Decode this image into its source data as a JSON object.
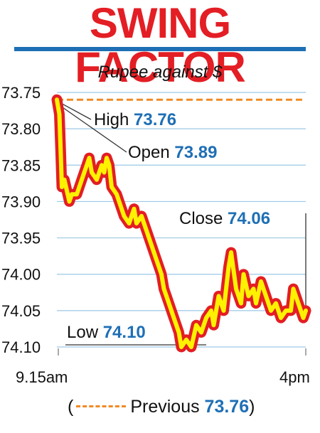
{
  "chart_data": {
    "type": "line",
    "title": "SWING FACTOR",
    "subtitle": "Rupee against $",
    "xlabel": "",
    "ylabel": "",
    "y_ticks": [
      "73.75",
      "73.80",
      "73.85",
      "73.90",
      "73.95",
      "74.00",
      "74.05",
      "74.10"
    ],
    "y_tick_values": [
      73.75,
      73.8,
      73.85,
      73.9,
      73.95,
      74.0,
      74.05,
      74.1
    ],
    "ylim": [
      74.1,
      73.75
    ],
    "y_inverted": true,
    "x_ticks": [
      "9.15am",
      "4pm"
    ],
    "xlim": [
      0,
      1
    ],
    "grid": true,
    "series": [
      {
        "values_x": [
          0.0,
          0.01,
          0.015,
          0.02,
          0.03,
          0.05,
          0.06,
          0.08,
          0.1,
          0.12,
          0.13,
          0.14,
          0.16,
          0.18,
          0.19,
          0.2,
          0.21,
          0.22,
          0.24,
          0.26,
          0.27,
          0.29,
          0.3,
          0.31,
          0.32,
          0.34,
          0.36,
          0.37,
          0.38,
          0.4,
          0.42,
          0.43,
          0.45,
          0.47,
          0.49,
          0.5,
          0.52,
          0.54,
          0.56,
          0.58,
          0.6,
          0.62,
          0.63,
          0.65,
          0.67,
          0.69,
          0.7,
          0.72,
          0.74,
          0.75,
          0.77,
          0.79,
          0.8,
          0.82,
          0.84,
          0.86,
          0.88,
          0.9,
          0.92,
          0.94,
          0.95,
          0.97,
          0.99,
          1.0
        ],
        "values_y": [
          73.76,
          73.78,
          73.83,
          73.88,
          73.87,
          73.9,
          73.89,
          73.89,
          73.87,
          73.85,
          73.84,
          73.86,
          73.87,
          73.85,
          73.86,
          73.84,
          73.85,
          73.88,
          73.89,
          73.91,
          73.92,
          73.93,
          73.92,
          73.91,
          73.93,
          73.92,
          73.94,
          73.95,
          73.96,
          73.98,
          74.0,
          74.02,
          74.04,
          74.06,
          74.08,
          74.1,
          74.09,
          74.1,
          74.07,
          74.08,
          74.06,
          74.05,
          74.07,
          74.03,
          74.05,
          73.99,
          73.97,
          74.02,
          74.04,
          74.0,
          74.03,
          74.02,
          74.04,
          74.01,
          74.03,
          74.05,
          74.04,
          74.06,
          74.05,
          74.05,
          74.02,
          74.04,
          74.06,
          74.05
        ]
      }
    ],
    "annotations": {
      "high": {
        "label": "High",
        "value": "73.76"
      },
      "open": {
        "label": "Open",
        "value": "73.89"
      },
      "close": {
        "label": "Close",
        "value": "74.06"
      },
      "low": {
        "label": "Low",
        "value": "74.10"
      }
    },
    "previous": {
      "label": "Previous",
      "value": "73.76",
      "y": 73.76
    },
    "colors": {
      "title": "#e31e24",
      "accent_blue": "#1e6fb5",
      "line_outer": "#e31e24",
      "line_inner": "#fff200",
      "previous_dash": "#f08a24",
      "grid": "#9cc8e6"
    }
  }
}
